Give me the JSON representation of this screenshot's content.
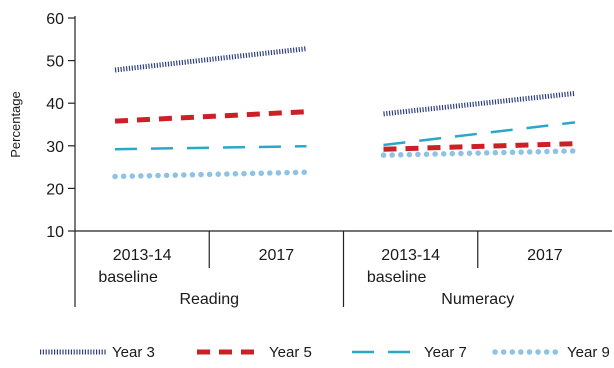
{
  "chart_data": {
    "type": "line",
    "ylabel": "Percentage",
    "ylim": [
      10,
      60
    ],
    "yticks": [
      "10",
      "20",
      "30",
      "40",
      "50",
      "60"
    ],
    "grid": false,
    "legend_position": "bottom",
    "groups": [
      {
        "name": "Reading",
        "categories": [
          "2013-14 baseline",
          "2017"
        ],
        "category_lines": [
          [
            "2013-14",
            "baseline"
          ],
          [
            "2017"
          ]
        ]
      },
      {
        "name": "Numeracy",
        "categories": [
          "2013-14 baseline",
          "2017"
        ],
        "category_lines": [
          [
            "2013-14",
            "baseline"
          ],
          [
            "2017"
          ]
        ]
      }
    ],
    "series": [
      {
        "name": "Year 3",
        "color": "#2f3f7f",
        "style": "dense-hatched",
        "values": [
          [
            47.8,
            52.8
          ],
          [
            37.5,
            42.3
          ]
        ]
      },
      {
        "name": "Year 5",
        "color": "#cc2027",
        "style": "thick-dashed",
        "values": [
          [
            35.8,
            38.0
          ],
          [
            29.2,
            30.5
          ]
        ]
      },
      {
        "name": "Year 7",
        "color": "#2aa8c8",
        "style": "long-dashed",
        "values": [
          [
            29.2,
            29.9
          ],
          [
            30.2,
            35.5
          ]
        ]
      },
      {
        "name": "Year 9",
        "color": "#8fc3e3",
        "style": "dotted",
        "values": [
          [
            22.8,
            23.8
          ],
          [
            27.8,
            28.8
          ]
        ]
      }
    ]
  }
}
